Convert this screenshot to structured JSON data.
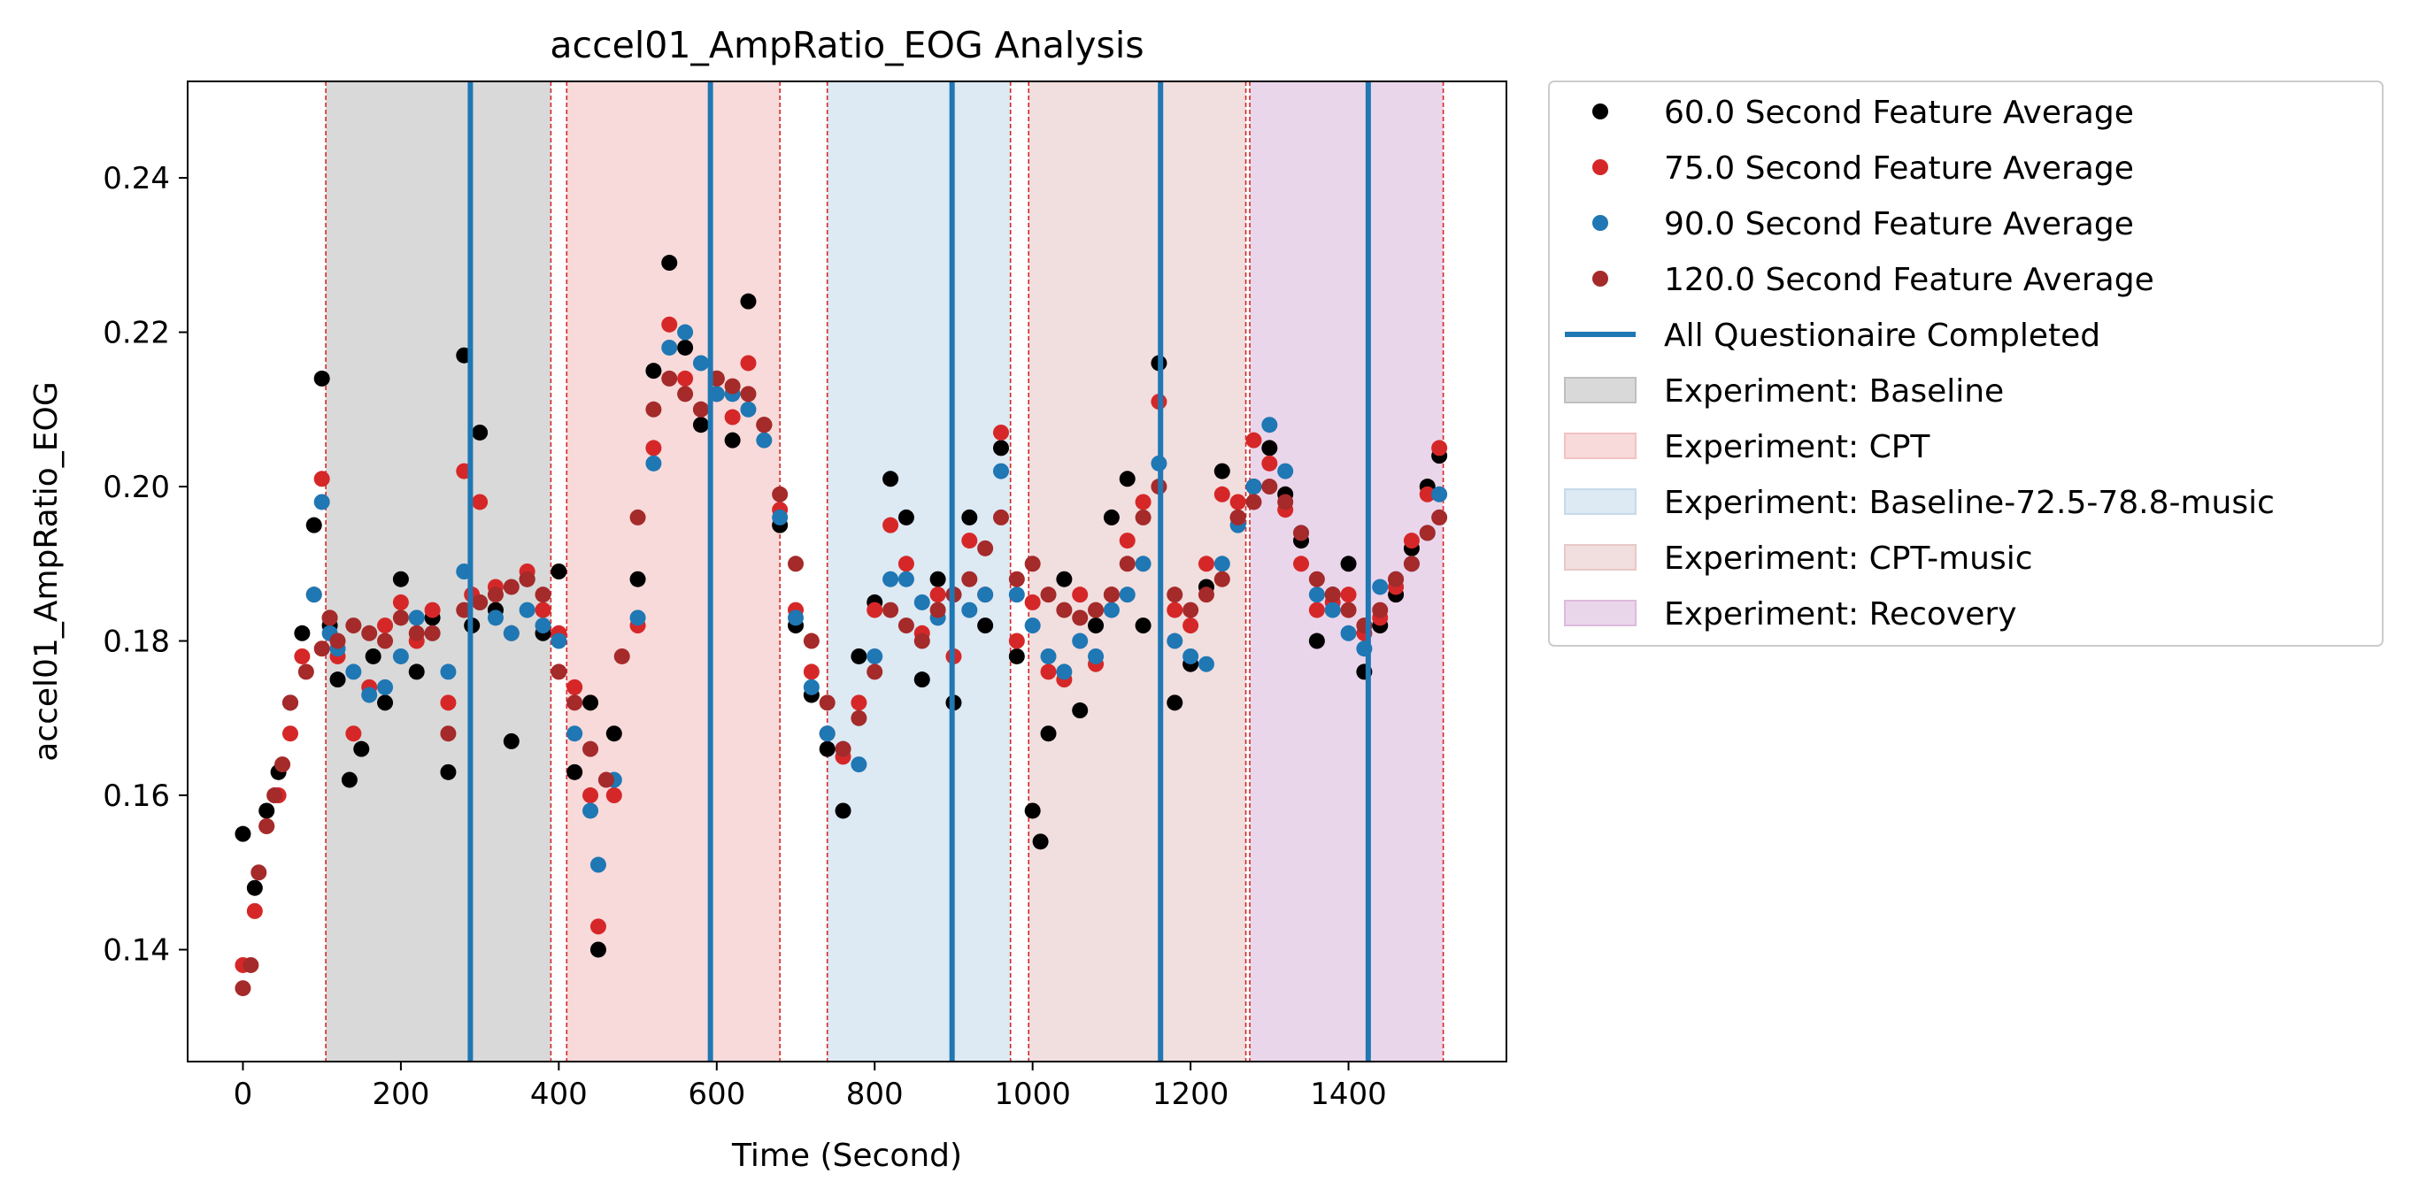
{
  "chart_data": {
    "type": "scatter",
    "title": "accel01_AmpRatio_EOG Analysis",
    "xlabel": "Time (Second)",
    "ylabel": "accel01_AmpRatio_EOG",
    "xlim": [
      -70,
      1600
    ],
    "ylim": [
      0.1255,
      0.2525
    ],
    "x_ticks": [
      0,
      200,
      400,
      600,
      800,
      1000,
      1200,
      1400
    ],
    "y_ticks": [
      0.14,
      0.16,
      0.18,
      0.2,
      0.22,
      0.24
    ],
    "x_tick_labels": [
      "0",
      "200",
      "400",
      "600",
      "800",
      "1000",
      "1200",
      "1400"
    ],
    "y_tick_labels": [
      "0.14",
      "0.16",
      "0.18",
      "0.20",
      "0.22",
      "0.24"
    ],
    "grid": false,
    "legend_position": "outside right, top",
    "series": [
      {
        "name": "60.0 Second Feature Average",
        "color": "#000000",
        "marker": "circle",
        "x": [
          0,
          15,
          30,
          45,
          60,
          75,
          90,
          100,
          110,
          120,
          135,
          150,
          165,
          180,
          200,
          220,
          240,
          260,
          280,
          290,
          300,
          320,
          340,
          360,
          380,
          400,
          420,
          440,
          450,
          470,
          500,
          520,
          540,
          560,
          580,
          600,
          620,
          640,
          660,
          680,
          700,
          720,
          740,
          760,
          780,
          800,
          820,
          840,
          860,
          880,
          900,
          920,
          940,
          960,
          980,
          1000,
          1010,
          1020,
          1040,
          1060,
          1080,
          1100,
          1120,
          1140,
          1160,
          1180,
          1200,
          1220,
          1240,
          1260,
          1280,
          1300,
          1320,
          1340,
          1360,
          1380,
          1400,
          1420,
          1440,
          1460,
          1480,
          1500,
          1515
        ],
        "y": [
          0.155,
          0.148,
          0.158,
          0.163,
          0.172,
          0.181,
          0.195,
          0.214,
          0.182,
          0.175,
          0.162,
          0.166,
          0.178,
          0.172,
          0.188,
          0.176,
          0.183,
          0.163,
          0.217,
          0.182,
          0.207,
          0.184,
          0.167,
          0.188,
          0.181,
          0.189,
          0.163,
          0.172,
          0.14,
          0.168,
          0.188,
          0.215,
          0.229,
          0.218,
          0.208,
          0.214,
          0.206,
          0.224,
          0.208,
          0.195,
          0.182,
          0.173,
          0.166,
          0.158,
          0.178,
          0.185,
          0.201,
          0.196,
          0.175,
          0.188,
          0.172,
          0.196,
          0.182,
          0.205,
          0.178,
          0.158,
          0.154,
          0.168,
          0.188,
          0.171,
          0.182,
          0.196,
          0.201,
          0.182,
          0.216,
          0.172,
          0.177,
          0.187,
          0.202,
          0.196,
          0.2,
          0.205,
          0.199,
          0.193,
          0.18,
          0.186,
          0.19,
          0.176,
          0.182,
          0.186,
          0.192,
          0.2,
          0.204
        ]
      },
      {
        "name": "75.0 Second Feature Average",
        "color": "#d62728",
        "marker": "circle",
        "x": [
          0,
          15,
          30,
          45,
          60,
          75,
          90,
          100,
          110,
          120,
          140,
          160,
          180,
          200,
          220,
          240,
          260,
          280,
          290,
          300,
          320,
          340,
          360,
          380,
          400,
          420,
          440,
          450,
          470,
          500,
          520,
          540,
          560,
          580,
          600,
          620,
          640,
          660,
          680,
          700,
          720,
          740,
          760,
          780,
          800,
          820,
          840,
          860,
          880,
          900,
          920,
          940,
          960,
          980,
          1000,
          1020,
          1040,
          1060,
          1080,
          1100,
          1120,
          1140,
          1160,
          1180,
          1200,
          1220,
          1240,
          1260,
          1280,
          1300,
          1320,
          1340,
          1360,
          1380,
          1400,
          1420,
          1440,
          1460,
          1480,
          1500,
          1515
        ],
        "y": [
          0.138,
          0.145,
          0.156,
          0.16,
          0.168,
          0.178,
          0.186,
          0.201,
          0.183,
          0.178,
          0.168,
          0.174,
          0.182,
          0.185,
          0.18,
          0.184,
          0.172,
          0.202,
          0.186,
          0.198,
          0.187,
          0.181,
          0.189,
          0.184,
          0.181,
          0.174,
          0.16,
          0.143,
          0.16,
          0.182,
          0.205,
          0.221,
          0.214,
          0.21,
          0.212,
          0.209,
          0.216,
          0.208,
          0.197,
          0.184,
          0.176,
          0.168,
          0.165,
          0.172,
          0.184,
          0.195,
          0.19,
          0.181,
          0.186,
          0.178,
          0.193,
          0.186,
          0.207,
          0.18,
          0.185,
          0.176,
          0.175,
          0.186,
          0.177,
          0.186,
          0.193,
          0.198,
          0.211,
          0.184,
          0.182,
          0.19,
          0.199,
          0.198,
          0.206,
          0.203,
          0.197,
          0.19,
          0.184,
          0.185,
          0.186,
          0.181,
          0.183,
          0.187,
          0.193,
          0.199,
          0.205
        ]
      },
      {
        "name": "90.0 Second Feature Average",
        "color": "#1f77b4",
        "marker": "circle",
        "x": [
          90,
          100,
          110,
          120,
          140,
          160,
          180,
          200,
          220,
          240,
          260,
          280,
          300,
          320,
          340,
          360,
          380,
          400,
          420,
          440,
          450,
          470,
          500,
          520,
          540,
          560,
          580,
          600,
          620,
          640,
          660,
          680,
          700,
          720,
          740,
          760,
          780,
          800,
          820,
          840,
          860,
          880,
          900,
          920,
          940,
          960,
          980,
          1000,
          1020,
          1040,
          1060,
          1080,
          1100,
          1120,
          1140,
          1160,
          1180,
          1200,
          1220,
          1240,
          1260,
          1280,
          1300,
          1320,
          1340,
          1360,
          1380,
          1400,
          1420,
          1440,
          1460,
          1480,
          1500,
          1515
        ],
        "y": [
          0.186,
          0.198,
          0.181,
          0.179,
          0.176,
          0.173,
          0.174,
          0.178,
          0.183,
          0.181,
          0.176,
          0.189,
          0.185,
          0.183,
          0.181,
          0.184,
          0.182,
          0.18,
          0.168,
          0.158,
          0.151,
          0.162,
          0.183,
          0.203,
          0.218,
          0.22,
          0.216,
          0.212,
          0.212,
          0.21,
          0.206,
          0.196,
          0.183,
          0.174,
          0.168,
          0.166,
          0.164,
          0.178,
          0.188,
          0.188,
          0.185,
          0.183,
          0.186,
          0.184,
          0.186,
          0.202,
          0.186,
          0.182,
          0.178,
          0.176,
          0.18,
          0.178,
          0.184,
          0.186,
          0.19,
          0.203,
          0.18,
          0.178,
          0.177,
          0.19,
          0.195,
          0.2,
          0.208,
          0.202,
          0.194,
          0.186,
          0.184,
          0.181,
          0.179,
          0.187,
          0.188,
          0.19,
          0.194,
          0.199
        ]
      },
      {
        "name": "120.0 Second Feature Average",
        "color": "#a52a2a",
        "marker": "circle",
        "x": [
          0,
          10,
          20,
          30,
          40,
          50,
          60,
          80,
          100,
          110,
          120,
          140,
          160,
          180,
          200,
          220,
          240,
          260,
          280,
          300,
          320,
          340,
          360,
          380,
          400,
          420,
          440,
          460,
          480,
          500,
          520,
          540,
          560,
          580,
          600,
          620,
          640,
          660,
          680,
          700,
          720,
          740,
          760,
          780,
          800,
          820,
          840,
          860,
          880,
          900,
          920,
          940,
          960,
          980,
          1000,
          1020,
          1040,
          1060,
          1080,
          1100,
          1120,
          1140,
          1160,
          1180,
          1200,
          1220,
          1240,
          1260,
          1280,
          1300,
          1320,
          1340,
          1360,
          1380,
          1400,
          1420,
          1440,
          1460,
          1480,
          1500,
          1515
        ],
        "y": [
          0.135,
          0.138,
          0.15,
          0.156,
          0.16,
          0.164,
          0.172,
          0.176,
          0.179,
          0.183,
          0.18,
          0.182,
          0.181,
          0.18,
          0.183,
          0.181,
          0.181,
          0.168,
          0.184,
          0.185,
          0.186,
          0.187,
          0.188,
          0.186,
          0.176,
          0.172,
          0.166,
          0.162,
          0.178,
          0.196,
          0.21,
          0.214,
          0.212,
          0.21,
          0.214,
          0.213,
          0.212,
          0.208,
          0.199,
          0.19,
          0.18,
          0.172,
          0.166,
          0.17,
          0.176,
          0.184,
          0.182,
          0.18,
          0.184,
          0.186,
          0.188,
          0.192,
          0.196,
          0.188,
          0.19,
          0.186,
          0.184,
          0.183,
          0.184,
          0.186,
          0.19,
          0.196,
          0.2,
          0.186,
          0.184,
          0.186,
          0.188,
          0.196,
          0.198,
          0.2,
          0.198,
          0.194,
          0.188,
          0.186,
          0.184,
          0.182,
          0.184,
          0.188,
          0.19,
          0.194,
          0.196
        ]
      }
    ],
    "questionnaire_line": {
      "name": "All Questionaire Completed",
      "color": "#1f77b4",
      "x": [
        288,
        592,
        898,
        1162,
        1425
      ]
    },
    "experiments": [
      {
        "name": "Experiment: Baseline",
        "start": 105,
        "end": 390,
        "color": "#bfbfbf"
      },
      {
        "name": "Experiment: CPT",
        "start": 410,
        "end": 680,
        "color": "#f4c2c2"
      },
      {
        "name": "Experiment: Baseline-72.5-78.8-music",
        "start": 740,
        "end": 972,
        "color": "#c6dbeb"
      },
      {
        "name": "Experiment: CPT-music",
        "start": 995,
        "end": 1270,
        "color": "#e8c8c8"
      },
      {
        "name": "Experiment: Recovery",
        "start": 1275,
        "end": 1520,
        "color": "#dcbbdc"
      }
    ],
    "boundary_line_color": "#d62728"
  }
}
